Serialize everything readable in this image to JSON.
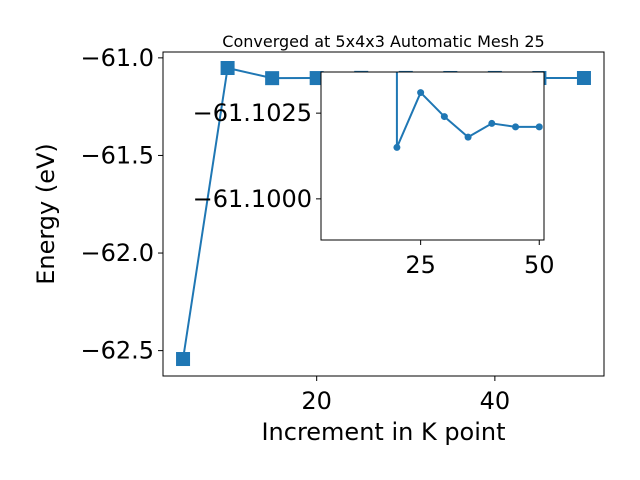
{
  "chart_data": [
    {
      "type": "line",
      "title": "Converged at 5x4x3 Automatic Mesh 25",
      "xlabel": "Increment in K point",
      "ylabel": "Energy (eV)",
      "xlim": [
        2.75,
        52.25
      ],
      "ylim": [
        -62.63,
        -60.97
      ],
      "xticks": [
        20,
        40
      ],
      "yticks": [
        -61.0,
        -61.5,
        -62.0,
        -62.5
      ],
      "ytick_labels": [
        "−61.0",
        "−61.5",
        "−62.0",
        "−62.5"
      ],
      "grid": false,
      "color": "#1f77b4",
      "marker": "square",
      "series": [
        {
          "x": [
            5,
            10,
            15,
            20,
            25,
            30,
            35,
            40,
            45,
            50
          ],
          "y": [
            -62.543,
            -61.052,
            -61.104,
            -61.1035,
            -61.1025,
            -61.1028,
            -61.1031,
            -61.1029,
            -61.1032,
            -61.1032
          ]
        }
      ]
    },
    {
      "type": "line",
      "inset": true,
      "xlim": [
        4.0,
        51.0
      ],
      "ylim": [
        -61.0988,
        -61.1037
      ],
      "xticks": [
        25,
        50
      ],
      "yticks": [
        -61.1025,
        -61.1
      ],
      "ytick_labels": [
        "−61.1025",
        "−61.1000"
      ],
      "grid": false,
      "color": "#1f77b4",
      "marker": "circle",
      "series": [
        {
          "x": [
            20,
            25,
            30,
            35,
            40,
            45,
            50
          ],
          "y": [
            -61.1015,
            -61.1031,
            -61.1024,
            -61.1018,
            -61.1022,
            -61.1021,
            -61.1021
          ]
        }
      ]
    }
  ]
}
